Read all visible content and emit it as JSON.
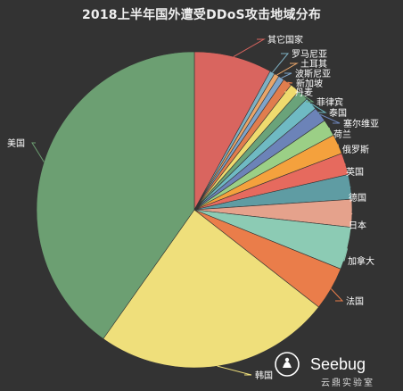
{
  "chart_data": {
    "type": "pie",
    "title": "2018上半年国外遭受DDoS攻击地域分布",
    "slices": [
      {
        "label": "其它国家",
        "value": 7.9,
        "color": "#d9655f"
      },
      {
        "label": "罗马尼亚",
        "value": 0.5,
        "color": "#7eb0c3"
      },
      {
        "label": "土耳其",
        "value": 0.5,
        "color": "#e8a56a"
      },
      {
        "label": "波斯尼亚",
        "value": 0.6,
        "color": "#7fa4c9"
      },
      {
        "label": "新加坡",
        "value": 0.9,
        "color": "#e07d4e"
      },
      {
        "label": "丹麦",
        "value": 1.0,
        "color": "#efdb6e"
      },
      {
        "label": "菲律宾",
        "value": 1.1,
        "color": "#6aa37a"
      },
      {
        "label": "泰国",
        "value": 1.3,
        "color": "#6fbac3"
      },
      {
        "label": "塞尔维亚",
        "value": 1.5,
        "color": "#6c83b8"
      },
      {
        "label": "荷兰",
        "value": 1.7,
        "color": "#9bcf86"
      },
      {
        "label": "俄罗斯",
        "value": 2.0,
        "color": "#f4a13d"
      },
      {
        "label": "英国",
        "value": 2.2,
        "color": "#e66a5e"
      },
      {
        "label": "德国",
        "value": 2.5,
        "color": "#5f9ca3"
      },
      {
        "label": "日本",
        "value": 2.8,
        "color": "#e5a28c"
      },
      {
        "label": "加拿大",
        "value": 4.3,
        "color": "#8ccbb4"
      },
      {
        "label": "法国",
        "value": 4.4,
        "color": "#ea7d4a"
      },
      {
        "label": "韩国",
        "value": 24.0,
        "color": "#efdf7b"
      },
      {
        "label": "美国",
        "value": 39.8,
        "color": "#6c9f72"
      }
    ]
  },
  "watermark": {
    "brand": "Seebug",
    "sub": "云鼎实验室",
    "icon": "bug-logo-icon"
  }
}
